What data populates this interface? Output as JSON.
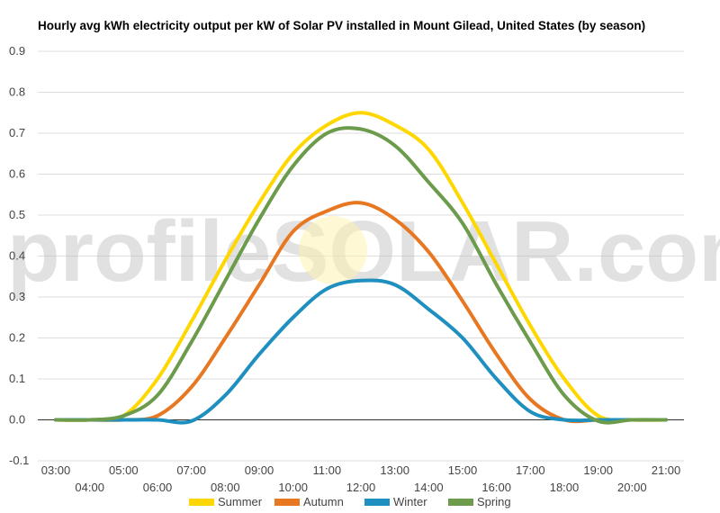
{
  "chart_data": {
    "type": "line",
    "title": "Hourly avg kWh electricity output per kW of Solar PV installed in Mount Gilead, United States (by season)",
    "xlabel": "",
    "ylabel": "",
    "x": [
      "03:00",
      "04:00",
      "05:00",
      "06:00",
      "07:00",
      "08:00",
      "09:00",
      "10:00",
      "11:00",
      "12:00",
      "13:00",
      "14:00",
      "15:00",
      "16:00",
      "17:00",
      "18:00",
      "19:00",
      "20:00",
      "21:00"
    ],
    "ylim": [
      -0.1,
      0.9
    ],
    "yticks": [
      "-0.1",
      "0.0",
      "0.1",
      "0.2",
      "0.3",
      "0.4",
      "0.5",
      "0.6",
      "0.7",
      "0.8",
      "0.9"
    ],
    "grid": true,
    "legend_position": "bottom",
    "watermark": "profileSOLAR.com",
    "series": [
      {
        "name": "Summer",
        "color": "#FFD700",
        "values": [
          0.0,
          0.0,
          0.01,
          0.1,
          0.24,
          0.39,
          0.53,
          0.65,
          0.72,
          0.75,
          0.72,
          0.66,
          0.53,
          0.38,
          0.23,
          0.1,
          0.01,
          0.0,
          0.0
        ]
      },
      {
        "name": "Autumn",
        "color": "#E87722",
        "values": [
          0.0,
          0.0,
          0.0,
          0.01,
          0.08,
          0.2,
          0.33,
          0.46,
          0.51,
          0.53,
          0.49,
          0.41,
          0.29,
          0.16,
          0.05,
          0.0,
          0.0,
          0.0,
          0.0
        ]
      },
      {
        "name": "Winter",
        "color": "#1E90C0",
        "values": [
          0.0,
          0.0,
          0.0,
          0.0,
          -0.003,
          0.06,
          0.16,
          0.25,
          0.32,
          0.34,
          0.33,
          0.27,
          0.2,
          0.1,
          0.02,
          0.0,
          0.0,
          0.0,
          0.0
        ]
      },
      {
        "name": "Spring",
        "color": "#6B9B4B",
        "values": [
          0.0,
          0.0,
          0.01,
          0.06,
          0.19,
          0.34,
          0.49,
          0.62,
          0.7,
          0.71,
          0.67,
          0.58,
          0.48,
          0.33,
          0.19,
          0.06,
          -0.003,
          0.0,
          0.0
        ]
      }
    ]
  }
}
